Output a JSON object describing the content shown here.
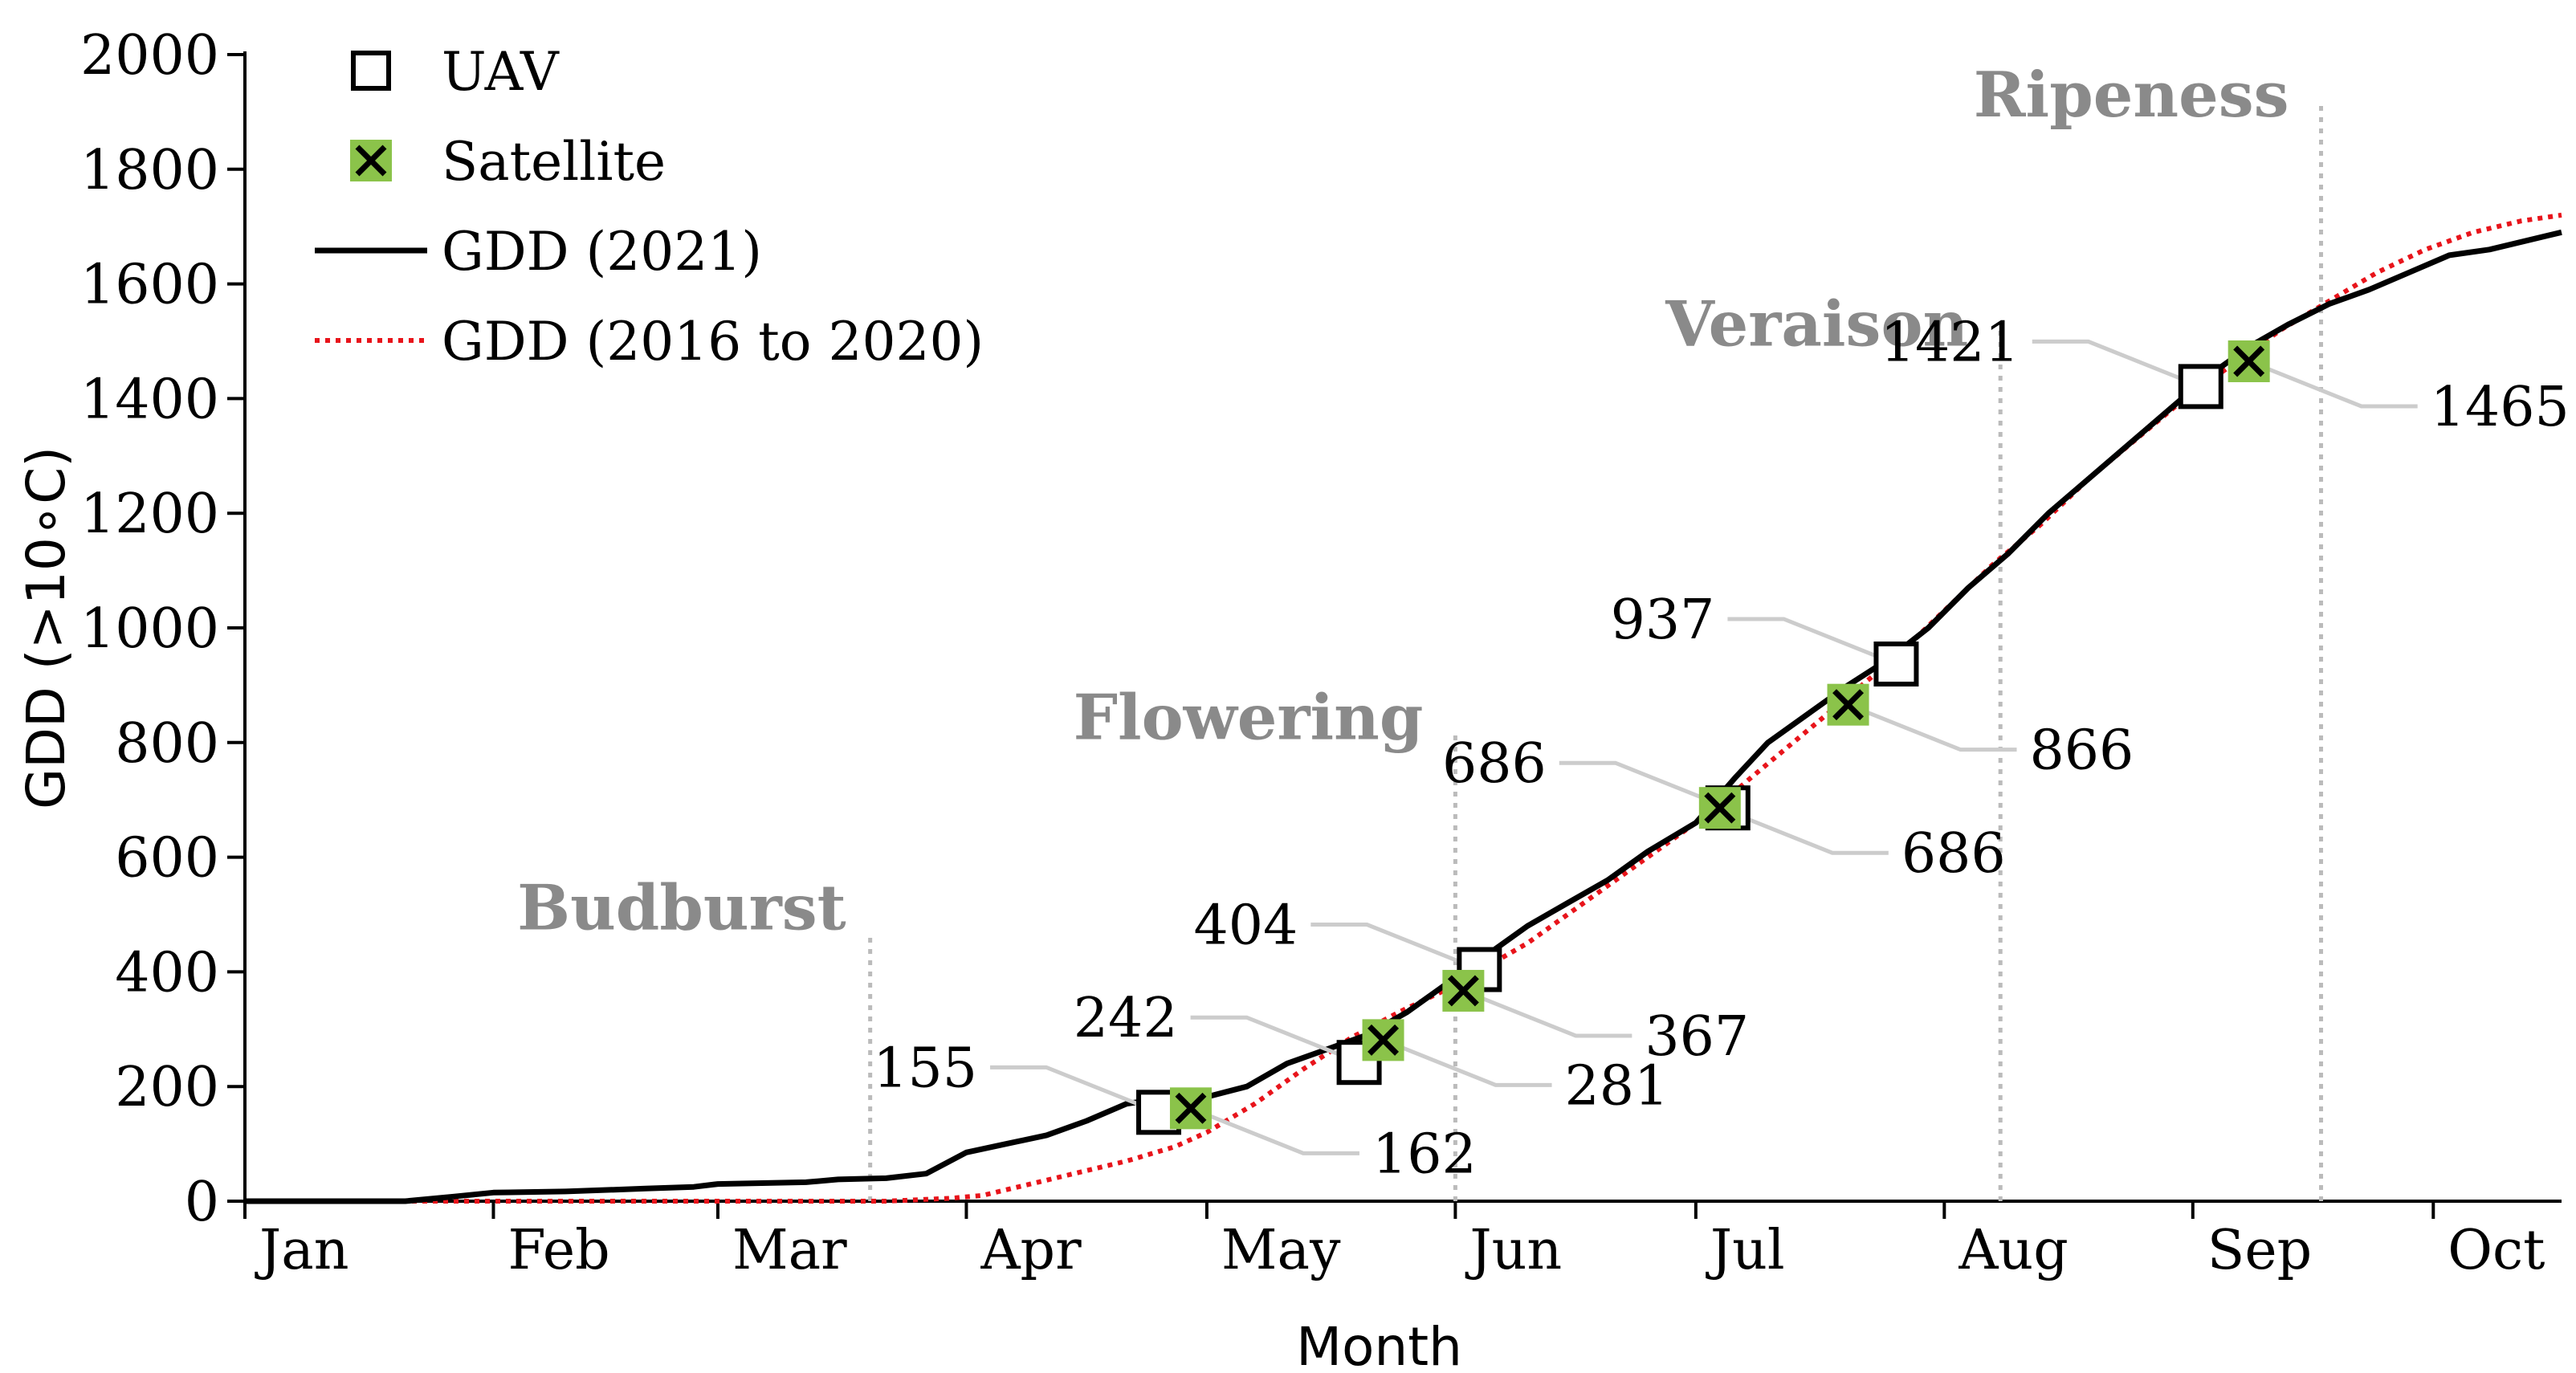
{
  "chart_data": {
    "type": "line",
    "xlabel": "Month",
    "ylabel": "GDD (>10∘C)",
    "ylim": [
      0,
      2000
    ],
    "xlim": [
      0,
      289
    ],
    "yticks": [
      0,
      200,
      400,
      600,
      800,
      1000,
      1200,
      1400,
      1600,
      1800,
      2000
    ],
    "xticks": [
      {
        "label": "Jan",
        "x": 0
      },
      {
        "label": "Feb",
        "x": 31
      },
      {
        "label": "Mar",
        "x": 59
      },
      {
        "label": "Apr",
        "x": 90
      },
      {
        "label": "May",
        "x": 120
      },
      {
        "label": "Jun",
        "x": 151
      },
      {
        "label": "Jul",
        "x": 181
      },
      {
        "label": "Aug",
        "x": 212
      },
      {
        "label": "Sep",
        "x": 243
      },
      {
        "label": "Oct",
        "x": 273
      }
    ],
    "grid": false,
    "legend_position": "top-left",
    "legend": [
      {
        "label": "UAV",
        "marker": "open-square"
      },
      {
        "label": "Satellite",
        "marker": "green-square-x"
      },
      {
        "label": "GDD (2021)",
        "style": "solid",
        "color": "#000000"
      },
      {
        "label": "GDD (2016 to 2020)",
        "style": "dotted",
        "color": "#e8141b"
      }
    ],
    "series": [
      {
        "name": "GDD (2021)",
        "color": "#000000",
        "style": "solid",
        "points": [
          [
            0,
            0
          ],
          [
            20,
            0
          ],
          [
            26,
            8
          ],
          [
            31,
            15
          ],
          [
            40,
            17
          ],
          [
            50,
            22
          ],
          [
            56,
            25
          ],
          [
            59,
            30
          ],
          [
            70,
            33
          ],
          [
            74,
            38
          ],
          [
            80,
            40
          ],
          [
            85,
            48
          ],
          [
            90,
            85
          ],
          [
            95,
            100
          ],
          [
            100,
            115
          ],
          [
            105,
            140
          ],
          [
            110,
            170
          ],
          [
            115,
            180
          ],
          [
            120,
            182
          ],
          [
            125,
            200
          ],
          [
            130,
            240
          ],
          [
            135,
            265
          ],
          [
            140,
            290
          ],
          [
            145,
            330
          ],
          [
            150,
            380
          ],
          [
            155,
            430
          ],
          [
            160,
            480
          ],
          [
            165,
            520
          ],
          [
            170,
            560
          ],
          [
            175,
            610
          ],
          [
            181,
            660
          ],
          [
            186,
            740
          ],
          [
            190,
            800
          ],
          [
            195,
            850
          ],
          [
            200,
            900
          ],
          [
            205,
            945
          ],
          [
            210,
            1000
          ],
          [
            215,
            1070
          ],
          [
            220,
            1130
          ],
          [
            225,
            1200
          ],
          [
            230,
            1260
          ],
          [
            235,
            1320
          ],
          [
            240,
            1380
          ],
          [
            245,
            1440
          ],
          [
            250,
            1490
          ],
          [
            255,
            1530
          ],
          [
            260,
            1565
          ],
          [
            265,
            1590
          ],
          [
            270,
            1620
          ],
          [
            275,
            1650
          ],
          [
            280,
            1660
          ],
          [
            289,
            1690
          ]
        ]
      },
      {
        "name": "GDD (2016 to 2020)",
        "color": "#e8141b",
        "style": "dotted",
        "points": [
          [
            0,
            0
          ],
          [
            60,
            0
          ],
          [
            80,
            0
          ],
          [
            88,
            5
          ],
          [
            92,
            10
          ],
          [
            98,
            30
          ],
          [
            104,
            50
          ],
          [
            110,
            70
          ],
          [
            116,
            95
          ],
          [
            120,
            120
          ],
          [
            126,
            170
          ],
          [
            132,
            230
          ],
          [
            138,
            285
          ],
          [
            144,
            330
          ],
          [
            150,
            370
          ],
          [
            155,
            410
          ],
          [
            160,
            450
          ],
          [
            166,
            510
          ],
          [
            172,
            570
          ],
          [
            178,
            630
          ],
          [
            183,
            680
          ],
          [
            188,
            740
          ],
          [
            194,
            810
          ],
          [
            200,
            880
          ],
          [
            206,
            950
          ],
          [
            212,
            1030
          ],
          [
            218,
            1110
          ],
          [
            224,
            1180
          ],
          [
            230,
            1260
          ],
          [
            236,
            1330
          ],
          [
            242,
            1400
          ],
          [
            248,
            1460
          ],
          [
            254,
            1520
          ],
          [
            260,
            1570
          ],
          [
            266,
            1620
          ],
          [
            272,
            1660
          ],
          [
            278,
            1690
          ],
          [
            284,
            1710
          ],
          [
            289,
            1720
          ]
        ]
      }
    ],
    "uav_points": [
      {
        "x": 114,
        "y": 155
      },
      {
        "x": 139,
        "y": 242
      },
      {
        "x": 154,
        "y": 404
      },
      {
        "x": 185,
        "y": 686
      },
      {
        "x": 206,
        "y": 937
      },
      {
        "x": 244,
        "y": 1421
      }
    ],
    "satellite_points": [
      {
        "x": 118,
        "y": 162
      },
      {
        "x": 142,
        "y": 281
      },
      {
        "x": 152,
        "y": 367
      },
      {
        "x": 184,
        "y": 686
      },
      {
        "x": 200,
        "y": 866
      },
      {
        "x": 250,
        "y": 1465
      }
    ],
    "stages": [
      {
        "label": "Budburst",
        "x": 78,
        "y_top": 460
      },
      {
        "label": "Flowering",
        "x": 151,
        "y_top": 820
      },
      {
        "label": "Veraison",
        "x": 219,
        "y_top": 1520
      },
      {
        "label": "Ripeness",
        "x": 259,
        "y_top": 1920
      }
    ],
    "annotations": [
      {
        "text": "155",
        "point": [
          114,
          155
        ]
      },
      {
        "text": "162",
        "point": [
          118,
          162
        ]
      },
      {
        "text": "242",
        "point": [
          139,
          242
        ]
      },
      {
        "text": "281",
        "point": [
          142,
          281
        ]
      },
      {
        "text": "404",
        "point": [
          154,
          404
        ]
      },
      {
        "text": "367",
        "point": [
          152,
          367
        ]
      },
      {
        "text": "686",
        "point": [
          185,
          686
        ]
      },
      {
        "text": "686",
        "point": [
          184,
          686
        ]
      },
      {
        "text": "937",
        "point": [
          206,
          937
        ]
      },
      {
        "text": "866",
        "point": [
          200,
          866
        ]
      },
      {
        "text": "1421",
        "point": [
          244,
          1421
        ]
      },
      {
        "text": "1465",
        "point": [
          250,
          1465
        ]
      }
    ],
    "colors": {
      "satellite_fill": "#8bc34a",
      "stage_text": "#8a8a8a",
      "stage_line": "#bbbbbb",
      "leader_line": "#cccccc"
    }
  }
}
